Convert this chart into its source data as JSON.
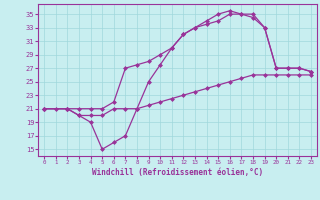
{
  "xlabel": "Windchill (Refroidissement éolien,°C)",
  "background_color": "#c8eef0",
  "grid_color": "#a0d8dc",
  "line_color": "#993399",
  "xlim": [
    -0.5,
    23.5
  ],
  "ylim": [
    14,
    36.5
  ],
  "xticks": [
    0,
    1,
    2,
    3,
    4,
    5,
    6,
    7,
    8,
    9,
    10,
    11,
    12,
    13,
    14,
    15,
    16,
    17,
    18,
    19,
    20,
    21,
    22,
    23
  ],
  "yticks": [
    15,
    17,
    19,
    21,
    23,
    25,
    27,
    29,
    31,
    33,
    35
  ],
  "line1_x": [
    0,
    1,
    2,
    3,
    4,
    5,
    6,
    7,
    8,
    9,
    10,
    11,
    12,
    13,
    14,
    15,
    16,
    17,
    18,
    19,
    20,
    21,
    22,
    23
  ],
  "line1_y": [
    21,
    21,
    21,
    20,
    20,
    20,
    21,
    21,
    21,
    21.5,
    22,
    22.5,
    23,
    23.5,
    24,
    24.5,
    25,
    25.5,
    26,
    26,
    26,
    26,
    26,
    26
  ],
  "line2_x": [
    0,
    2,
    3,
    4,
    5,
    6,
    7,
    8,
    9,
    10,
    11,
    12,
    13,
    14,
    15,
    16,
    17,
    18,
    19,
    20,
    21,
    22,
    23
  ],
  "line2_y": [
    21,
    21,
    21,
    21,
    21,
    22,
    27,
    27.5,
    28,
    29,
    30,
    32,
    33,
    33.5,
    34,
    35,
    35,
    34.5,
    33,
    27,
    27,
    27,
    26.5
  ],
  "line3_x": [
    0,
    2,
    3,
    4,
    5,
    6,
    7,
    8,
    9,
    10,
    11,
    12,
    13,
    14,
    15,
    16,
    17,
    18,
    19,
    20,
    21,
    22,
    23
  ],
  "line3_y": [
    21,
    21,
    20,
    19,
    15,
    16,
    17,
    21,
    25,
    27.5,
    30,
    32,
    33,
    34,
    35,
    35.5,
    35,
    35,
    33,
    27,
    27,
    27,
    26.5
  ],
  "marker": "D",
  "markersize": 2.5,
  "linewidth": 0.9
}
